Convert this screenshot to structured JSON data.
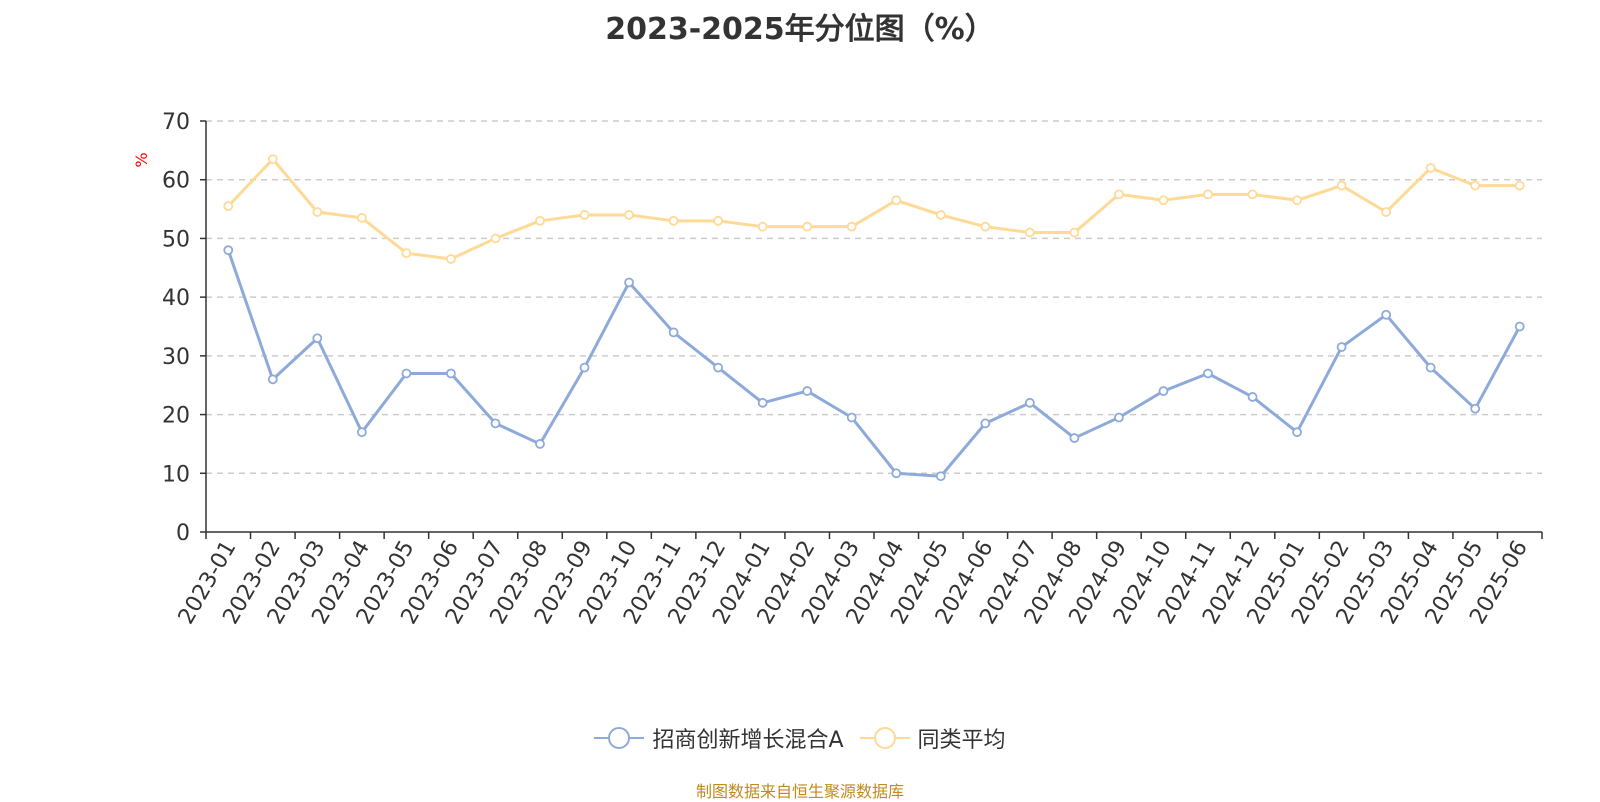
{
  "title": "2023-2025年分位图（%）",
  "source": "制图数据来自恒生聚源数据库",
  "chart_data": {
    "type": "line",
    "title": "2023-2025年分位图（%）",
    "ylabel": "%",
    "ylim": [
      0,
      70
    ],
    "yticks": [
      0,
      10,
      20,
      30,
      40,
      50,
      60,
      70
    ],
    "grid": true,
    "legend_position": "bottom",
    "categories": [
      "2023-01",
      "2023-02",
      "2023-03",
      "2023-04",
      "2023-05",
      "2023-06",
      "2023-07",
      "2023-08",
      "2023-09",
      "2023-10",
      "2023-11",
      "2023-12",
      "2024-01",
      "2024-02",
      "2024-03",
      "2024-04",
      "2024-05",
      "2024-06",
      "2024-07",
      "2024-08",
      "2024-09",
      "2024-10",
      "2024-11",
      "2024-12",
      "2025-01",
      "2025-02",
      "2025-03",
      "2025-04",
      "2025-05",
      "2025-06"
    ],
    "series": [
      {
        "name": "招商创新增长混合A",
        "color": "#8eaadb",
        "values": [
          48,
          26,
          33,
          17,
          27,
          27,
          18.5,
          15,
          28,
          42.5,
          34,
          28,
          22,
          24,
          19.5,
          10,
          9.5,
          18.5,
          22,
          16,
          19.5,
          24,
          27,
          23,
          17,
          31.5,
          37,
          28,
          21,
          35
        ]
      },
      {
        "name": "同类平均",
        "color": "#ffd996",
        "values": [
          55.5,
          63.5,
          54.5,
          53.5,
          47.5,
          46.5,
          50,
          53,
          54,
          54,
          53,
          53,
          52,
          52,
          52,
          56.5,
          54,
          52,
          51,
          51,
          57.5,
          56.5,
          57.5,
          57.5,
          56.5,
          59,
          54.5,
          62,
          59,
          59
        ]
      }
    ]
  }
}
